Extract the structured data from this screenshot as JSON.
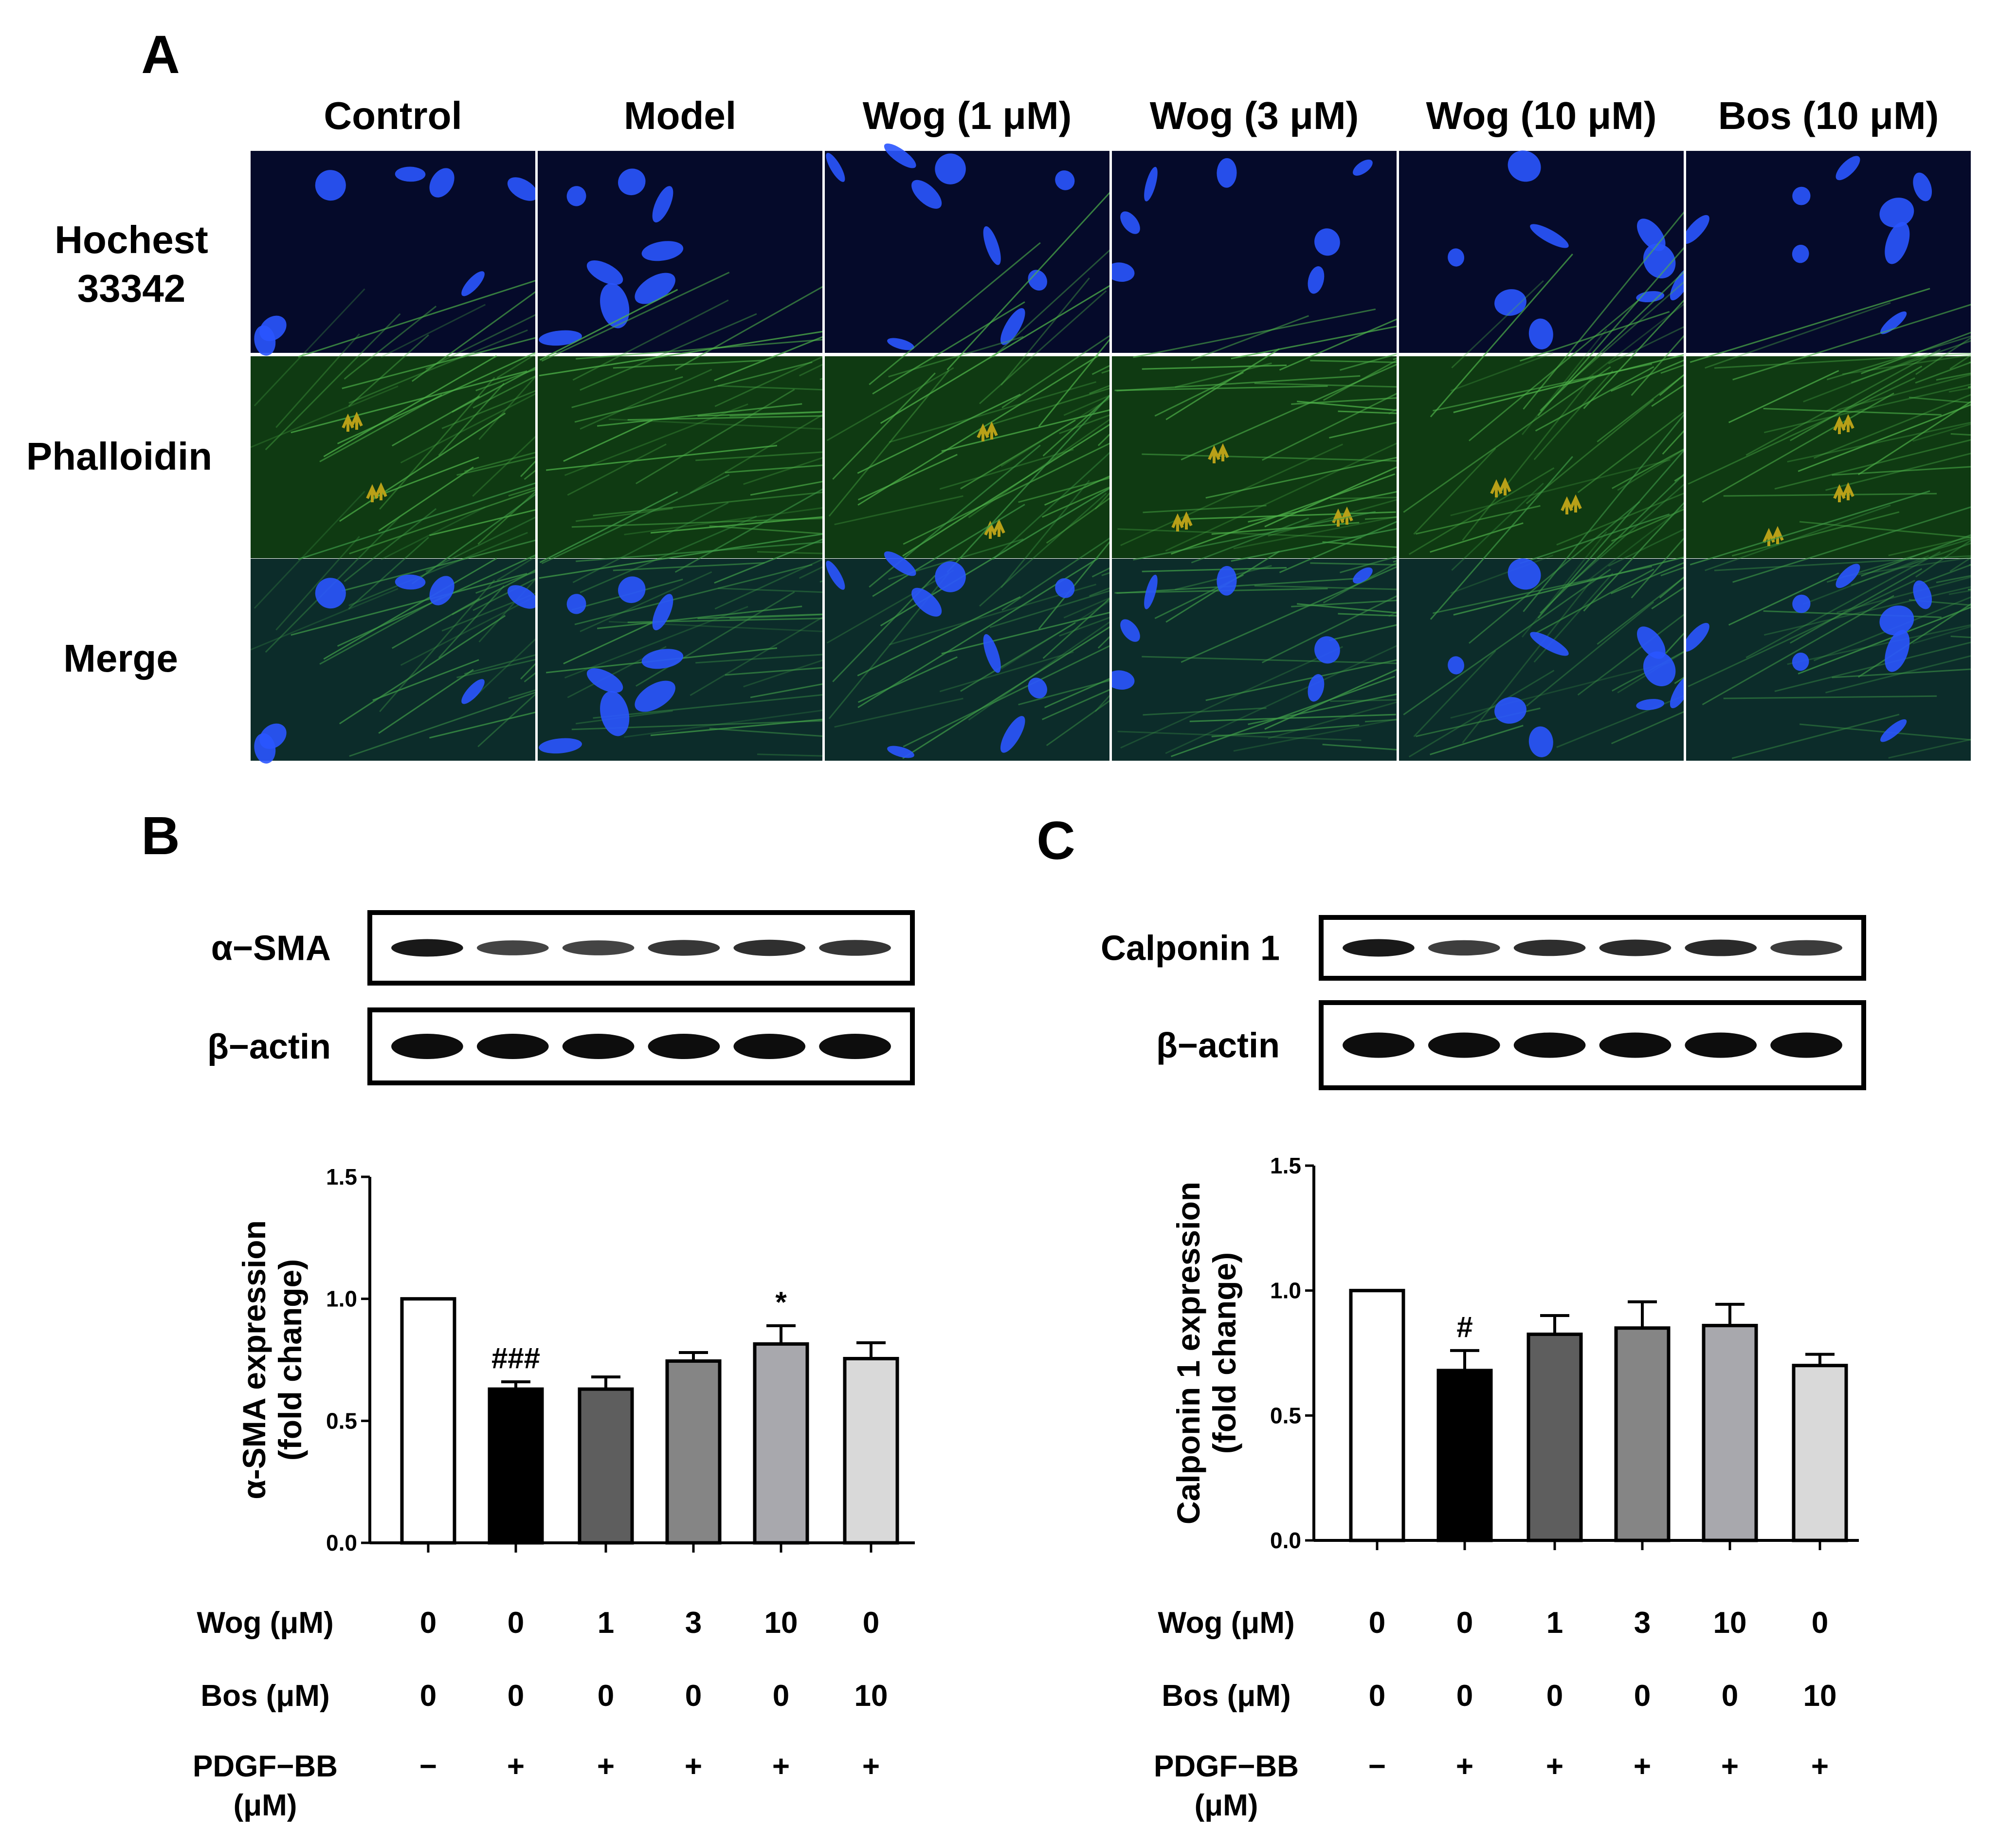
{
  "panel_a": {
    "letter": "A",
    "column_headers": [
      "Control",
      "Model",
      "Wog (1 μM)",
      "Wog (3 μM)",
      "Wog (10 μM)",
      "Bos (10 μM)"
    ],
    "row_labels": [
      [
        "Hochest",
        "33342"
      ],
      [
        "Phalloidin"
      ],
      [
        "Merge"
      ]
    ],
    "colors": {
      "nucleus": "#2a55ff",
      "actin": "#2f8a2a",
      "arrow": "#b8a018",
      "blue_bg": "#050a2a",
      "green_bg": "#0f3a12"
    }
  },
  "panel_b": {
    "letter": "B",
    "blot_labels": [
      "α−SMA",
      "β−actin"
    ],
    "treatment_rows": [
      {
        "label": [
          "Wog (μM)"
        ],
        "values": [
          "0",
          "0",
          "1",
          "3",
          "10",
          "0"
        ]
      },
      {
        "label": [
          "Bos (μM)"
        ],
        "values": [
          "0",
          "0",
          "0",
          "0",
          "0",
          "10"
        ]
      },
      {
        "label": [
          "PDGF−BB",
          "(μM)"
        ],
        "values": [
          "−",
          "+",
          "+",
          "+",
          "+",
          "+"
        ]
      }
    ]
  },
  "panel_c": {
    "letter": "C",
    "blot_labels": [
      "Calponin 1",
      "β−actin"
    ],
    "treatment_rows": [
      {
        "label": [
          "Wog (μM)"
        ],
        "values": [
          "0",
          "0",
          "1",
          "3",
          "10",
          "0"
        ]
      },
      {
        "label": [
          "Bos (μM)"
        ],
        "values": [
          "0",
          "0",
          "0",
          "0",
          "0",
          "10"
        ]
      },
      {
        "label": [
          "PDGF−BB",
          "(μM)"
        ],
        "values": [
          "−",
          "+",
          "+",
          "+",
          "+",
          "+"
        ]
      }
    ]
  },
  "chart_data": [
    {
      "type": "bar",
      "panel": "B",
      "ylabel": [
        "α-SMA expression",
        "(fold change)"
      ],
      "ylim": [
        0,
        1.5
      ],
      "yticks": [
        "0.0",
        "0.5",
        "1.0",
        "1.5"
      ],
      "values": [
        1.0,
        0.63,
        0.63,
        0.745,
        0.815,
        0.755
      ],
      "errors": [
        0,
        0.03,
        0.05,
        0.035,
        0.075,
        0.065
      ],
      "annotations": [
        "",
        "###",
        "",
        "",
        "*",
        ""
      ],
      "bar_colors": [
        "#ffffff",
        "#000000",
        "#5e5e5e",
        "#858585",
        "#a8a8ad",
        "#d9d9d9"
      ]
    },
    {
      "type": "bar",
      "panel": "C",
      "ylabel": [
        "Calponin 1 expression",
        "(fold change)"
      ],
      "ylim": [
        0,
        1.5
      ],
      "yticks": [
        "0.0",
        "0.5",
        "1.0",
        "1.5"
      ],
      "values": [
        1.0,
        0.68,
        0.825,
        0.85,
        0.86,
        0.7
      ],
      "errors": [
        0,
        0.08,
        0.075,
        0.105,
        0.085,
        0.045
      ],
      "annotations": [
        "",
        "#",
        "",
        "",
        "",
        ""
      ],
      "bar_colors": [
        "#ffffff",
        "#000000",
        "#5e5e5e",
        "#858585",
        "#a8a8ad",
        "#d9d9d9"
      ]
    }
  ]
}
